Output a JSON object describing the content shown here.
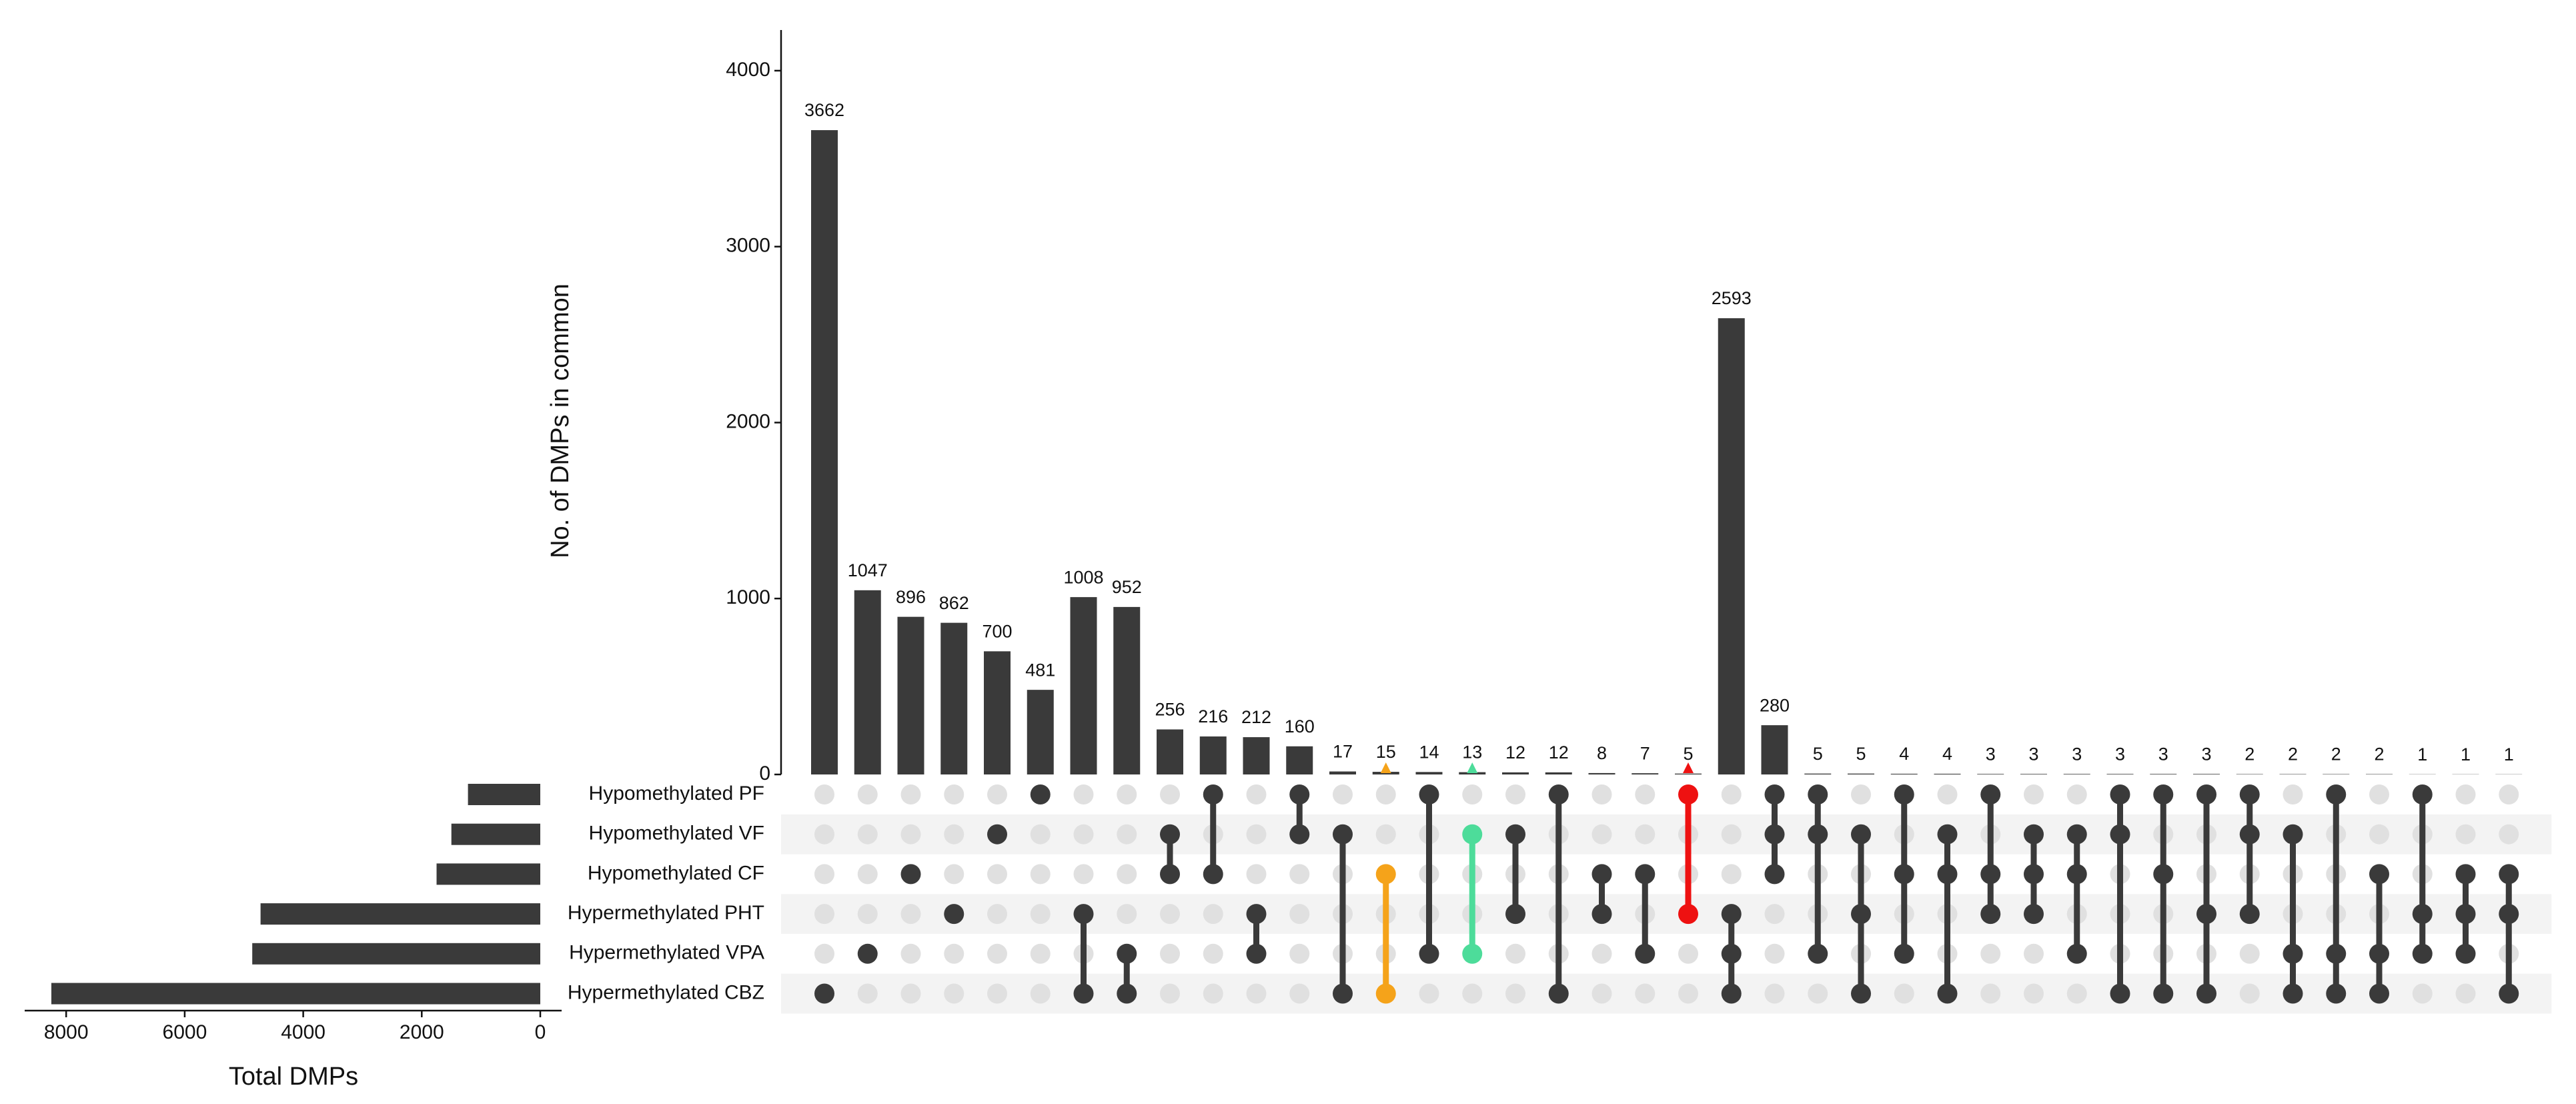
{
  "chart_data": {
    "type": "upset",
    "y_label": "No. of DMPs in common",
    "x_label": "Total DMPs",
    "bar_color": "#3a3a3a",
    "dot_off_color": "#e0e0e0",
    "band_color": "#f3f3f3",
    "ylim": [
      0,
      4250
    ],
    "yticks": [
      0,
      1000,
      2000,
      3000,
      4000
    ],
    "xlim": [
      0,
      8700
    ],
    "xticks": [
      0,
      2000,
      4000,
      6000,
      8000
    ],
    "sets": [
      {
        "name": "Hypomethylated PF",
        "size": 1220
      },
      {
        "name": "Hypomethylated VF",
        "size": 1500
      },
      {
        "name": "Hypomethylated CF",
        "size": 1750
      },
      {
        "name": "Hypermethylated PHT",
        "size": 4720
      },
      {
        "name": "Hypermethylated VPA",
        "size": 4860
      },
      {
        "name": "Hypermethylated CBZ",
        "size": 8250
      }
    ],
    "intersections": [
      {
        "sets": [
          5
        ],
        "value": 3662
      },
      {
        "sets": [
          4
        ],
        "value": 1047
      },
      {
        "sets": [
          2
        ],
        "value": 896
      },
      {
        "sets": [
          3
        ],
        "value": 862
      },
      {
        "sets": [
          1
        ],
        "value": 700
      },
      {
        "sets": [
          0
        ],
        "value": 481
      },
      {
        "sets": [
          3,
          5
        ],
        "value": 1008
      },
      {
        "sets": [
          4,
          5
        ],
        "value": 952
      },
      {
        "sets": [
          1,
          2
        ],
        "value": 256
      },
      {
        "sets": [
          0,
          2
        ],
        "value": 216
      },
      {
        "sets": [
          3,
          4
        ],
        "value": 212
      },
      {
        "sets": [
          0,
          1
        ],
        "value": 160
      },
      {
        "sets": [
          1,
          5
        ],
        "value": 17
      },
      {
        "sets": [
          2,
          5
        ],
        "value": 15,
        "color": "#f5a31a"
      },
      {
        "sets": [
          0,
          4
        ],
        "value": 14
      },
      {
        "sets": [
          1,
          4
        ],
        "value": 13,
        "color": "#4ddc9a"
      },
      {
        "sets": [
          1,
          3
        ],
        "value": 12
      },
      {
        "sets": [
          0,
          5
        ],
        "value": 12
      },
      {
        "sets": [
          2,
          3
        ],
        "value": 8
      },
      {
        "sets": [
          2,
          4
        ],
        "value": 7
      },
      {
        "sets": [
          0,
          3
        ],
        "value": 5,
        "color": "#ee1111"
      },
      {
        "sets": [
          3,
          4,
          5
        ],
        "value": 2593
      },
      {
        "sets": [
          0,
          1,
          2
        ],
        "value": 280
      },
      {
        "sets": [
          0,
          1,
          4
        ],
        "value": 5
      },
      {
        "sets": [
          1,
          3,
          5
        ],
        "value": 5
      },
      {
        "sets": [
          0,
          2,
          4
        ],
        "value": 4
      },
      {
        "sets": [
          1,
          2,
          5
        ],
        "value": 4
      },
      {
        "sets": [
          0,
          2,
          3
        ],
        "value": 3
      },
      {
        "sets": [
          1,
          2,
          3
        ],
        "value": 3
      },
      {
        "sets": [
          1,
          2,
          4
        ],
        "value": 3
      },
      {
        "sets": [
          0,
          1,
          5
        ],
        "value": 3
      },
      {
        "sets": [
          0,
          2,
          5
        ],
        "value": 3
      },
      {
        "sets": [
          0,
          3,
          5
        ],
        "value": 3
      },
      {
        "sets": [
          0,
          1,
          3
        ],
        "value": 2
      },
      {
        "sets": [
          1,
          4,
          5
        ],
        "value": 2
      },
      {
        "sets": [
          0,
          4,
          5
        ],
        "value": 2
      },
      {
        "sets": [
          2,
          4,
          5
        ],
        "value": 2
      },
      {
        "sets": [
          0,
          3,
          4
        ],
        "value": 1
      },
      {
        "sets": [
          2,
          3,
          4
        ],
        "value": 1
      },
      {
        "sets": [
          2,
          3,
          5
        ],
        "value": 1
      }
    ]
  }
}
